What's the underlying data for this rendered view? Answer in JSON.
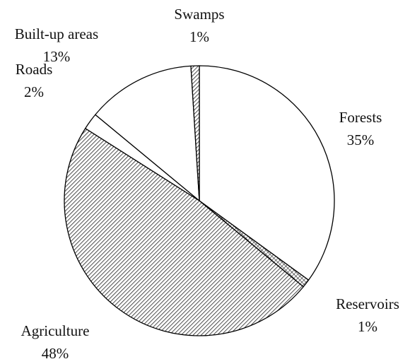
{
  "chart_data": {
    "type": "pie",
    "categories": [
      "Forests",
      "Reservoirs",
      "Agriculture",
      "Roads",
      "Built-up areas",
      "Swamps"
    ],
    "values": [
      35,
      1,
      48,
      2,
      13,
      1
    ],
    "value_labels": [
      "35%",
      "1%",
      "48%",
      "2%",
      "13%",
      "1%"
    ],
    "patterns": [
      "none",
      "crosshatch",
      "hatch",
      "none",
      "none",
      "hatch"
    ],
    "color": "#000000"
  }
}
